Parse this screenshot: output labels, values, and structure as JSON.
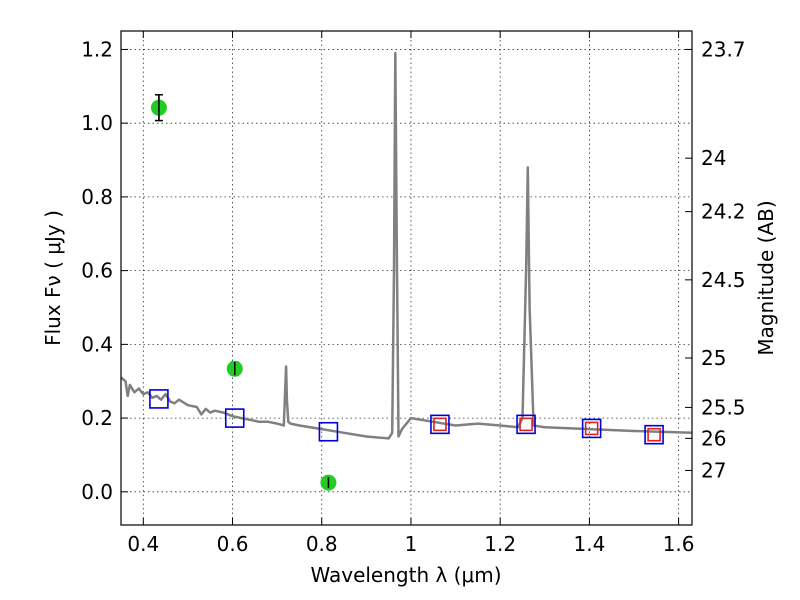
{
  "chart_data": {
    "type": "scatter",
    "title": "",
    "xlabel": "Wavelength  λ (μm)",
    "ylabel": "Flux  Fν  ( μJy )",
    "ylabel_right": "Magnitude (AB)",
    "xlim": [
      0.35,
      1.63
    ],
    "ylim": [
      -0.09,
      1.25
    ],
    "grid": true,
    "legend": "none",
    "x_ticks": [
      0.4,
      0.6,
      0.8,
      1.0,
      1.2,
      1.4,
      1.6
    ],
    "x_tick_labels": [
      "0.4",
      "0.6",
      "0.8",
      "1",
      "1.2",
      "1.4",
      "1.6"
    ],
    "y_ticks": [
      0.0,
      0.2,
      0.4,
      0.6,
      0.8,
      1.0,
      1.2
    ],
    "y_tick_labels": [
      "0.0",
      "0.2",
      "0.4",
      "0.6",
      "0.8",
      "1.0",
      "1.2"
    ],
    "right_ticks": [
      {
        "flux": 1.2,
        "label": "23.7"
      },
      {
        "flux": 0.905,
        "label": "24"
      },
      {
        "flux": 0.76,
        "label": "24.2"
      },
      {
        "flux": 0.575,
        "label": "24.5"
      },
      {
        "flux": 0.363,
        "label": "25"
      },
      {
        "flux": 0.229,
        "label": "25.5"
      },
      {
        "flux": 0.145,
        "label": "26"
      },
      {
        "flux": 0.058,
        "label": "27"
      }
    ],
    "series": [
      {
        "kind": "line",
        "color": "#808080",
        "x": [
          0.35,
          0.36,
          0.365,
          0.37,
          0.38,
          0.39,
          0.4,
          0.41,
          0.42,
          0.43,
          0.44,
          0.45,
          0.46,
          0.47,
          0.48,
          0.5,
          0.52,
          0.53,
          0.54,
          0.55,
          0.56,
          0.58,
          0.6,
          0.62,
          0.64,
          0.66,
          0.68,
          0.7,
          0.715,
          0.72,
          0.722,
          0.725,
          0.73,
          0.75,
          0.8,
          0.85,
          0.9,
          0.95,
          0.958,
          0.962,
          0.965,
          0.968,
          0.972,
          0.98,
          1.0,
          1.05,
          1.1,
          1.15,
          1.2,
          1.24,
          1.25,
          1.258,
          1.262,
          1.266,
          1.275,
          1.3,
          1.4,
          1.5,
          1.63
        ],
        "y": [
          0.31,
          0.3,
          0.26,
          0.29,
          0.27,
          0.28,
          0.265,
          0.27,
          0.255,
          0.26,
          0.25,
          0.265,
          0.245,
          0.24,
          0.25,
          0.235,
          0.23,
          0.21,
          0.225,
          0.215,
          0.22,
          0.215,
          0.205,
          0.2,
          0.195,
          0.19,
          0.19,
          0.185,
          0.18,
          0.34,
          0.25,
          0.19,
          0.185,
          0.18,
          0.17,
          0.16,
          0.15,
          0.145,
          0.16,
          0.6,
          1.19,
          0.7,
          0.15,
          0.17,
          0.2,
          0.19,
          0.18,
          0.185,
          0.18,
          0.175,
          0.2,
          0.6,
          0.88,
          0.5,
          0.18,
          0.175,
          0.17,
          0.165,
          0.16
        ]
      },
      {
        "kind": "points",
        "color": "#22cc22",
        "x": [
          0.435,
          0.605,
          0.815
        ],
        "y": [
          1.042,
          0.334,
          0.025
        ],
        "yerr": [
          0.035,
          0.018,
          0.015
        ]
      },
      {
        "kind": "squares",
        "color": "#0000dd",
        "x": [
          0.435,
          0.605,
          0.815,
          1.065,
          1.258,
          1.405,
          1.545
        ],
        "y": [
          0.252,
          0.2,
          0.163,
          0.183,
          0.183,
          0.172,
          0.155
        ]
      },
      {
        "kind": "squares",
        "color": "#dd2222",
        "x": [
          1.065,
          1.258,
          1.405,
          1.545
        ],
        "y": [
          0.183,
          0.183,
          0.172,
          0.155
        ]
      }
    ]
  }
}
